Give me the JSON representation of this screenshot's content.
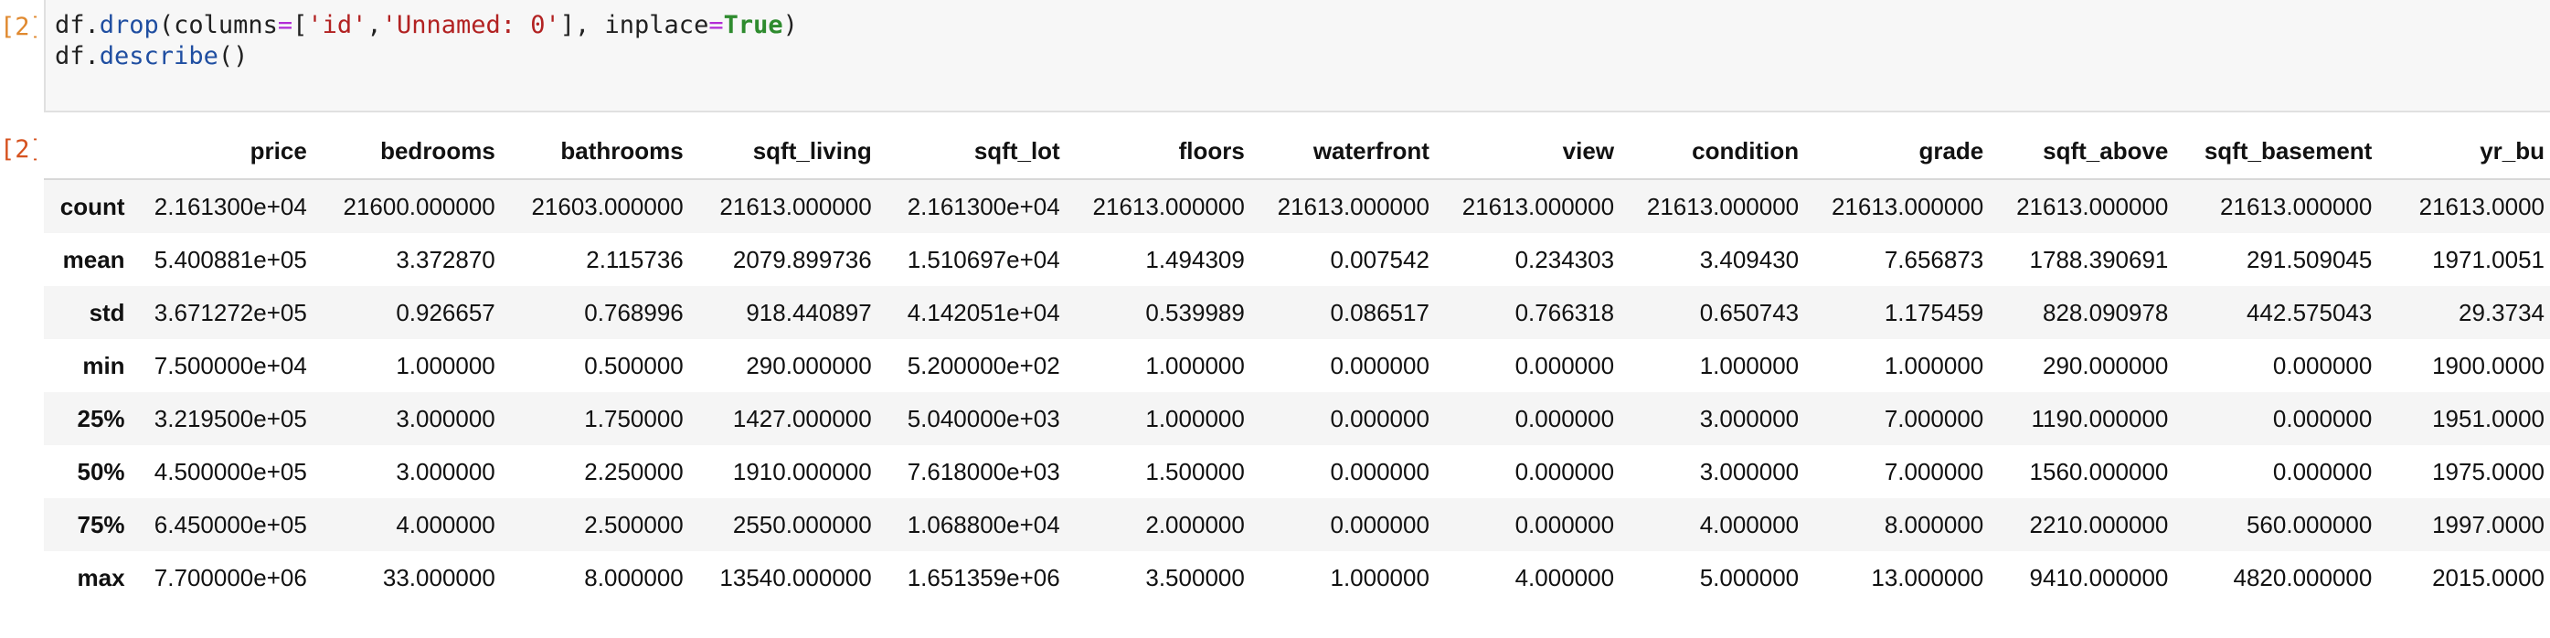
{
  "prompts": {
    "input": "[2]:",
    "output": "[2]:"
  },
  "code": {
    "line1": {
      "obj": "df.",
      "method": "drop",
      "open": "(columns",
      "eq": "=",
      "open_bracket": "[",
      "str1": "'id'",
      "comma": ",",
      "str2": "'Unnamed: 0'",
      "close": "], inplace",
      "eq2": "=",
      "kw": "True",
      "end": ")"
    },
    "line2": {
      "obj": "df.",
      "method": "describe",
      "end": "()"
    }
  },
  "table": {
    "index_header": "",
    "columns": [
      "price",
      "bedrooms",
      "bathrooms",
      "sqft_living",
      "sqft_lot",
      "floors",
      "waterfront",
      "view",
      "condition",
      "grade",
      "sqft_above",
      "sqft_basement",
      "yr_bu"
    ],
    "rows": [
      {
        "label": "count",
        "cells": [
          "2.161300e+04",
          "21600.000000",
          "21603.000000",
          "21613.000000",
          "2.161300e+04",
          "21613.000000",
          "21613.000000",
          "21613.000000",
          "21613.000000",
          "21613.000000",
          "21613.000000",
          "21613.000000",
          "21613.0000"
        ]
      },
      {
        "label": "mean",
        "cells": [
          "5.400881e+05",
          "3.372870",
          "2.115736",
          "2079.899736",
          "1.510697e+04",
          "1.494309",
          "0.007542",
          "0.234303",
          "3.409430",
          "7.656873",
          "1788.390691",
          "291.509045",
          "1971.0051"
        ]
      },
      {
        "label": "std",
        "cells": [
          "3.671272e+05",
          "0.926657",
          "0.768996",
          "918.440897",
          "4.142051e+04",
          "0.539989",
          "0.086517",
          "0.766318",
          "0.650743",
          "1.175459",
          "828.090978",
          "442.575043",
          "29.3734"
        ]
      },
      {
        "label": "min",
        "cells": [
          "7.500000e+04",
          "1.000000",
          "0.500000",
          "290.000000",
          "5.200000e+02",
          "1.000000",
          "0.000000",
          "0.000000",
          "1.000000",
          "1.000000",
          "290.000000",
          "0.000000",
          "1900.0000"
        ]
      },
      {
        "label": "25%",
        "cells": [
          "3.219500e+05",
          "3.000000",
          "1.750000",
          "1427.000000",
          "5.040000e+03",
          "1.000000",
          "0.000000",
          "0.000000",
          "3.000000",
          "7.000000",
          "1190.000000",
          "0.000000",
          "1951.0000"
        ]
      },
      {
        "label": "50%",
        "cells": [
          "4.500000e+05",
          "3.000000",
          "2.250000",
          "1910.000000",
          "7.618000e+03",
          "1.500000",
          "0.000000",
          "0.000000",
          "3.000000",
          "7.000000",
          "1560.000000",
          "0.000000",
          "1975.0000"
        ]
      },
      {
        "label": "75%",
        "cells": [
          "6.450000e+05",
          "4.000000",
          "2.500000",
          "2550.000000",
          "1.068800e+04",
          "2.000000",
          "0.000000",
          "0.000000",
          "4.000000",
          "8.000000",
          "2210.000000",
          "560.000000",
          "1997.0000"
        ]
      },
      {
        "label": "max",
        "cells": [
          "7.700000e+06",
          "33.000000",
          "8.000000",
          "13540.000000",
          "1.651359e+06",
          "3.500000",
          "1.000000",
          "4.000000",
          "5.000000",
          "13.000000",
          "9410.000000",
          "4820.000000",
          "2015.0000"
        ]
      }
    ]
  }
}
